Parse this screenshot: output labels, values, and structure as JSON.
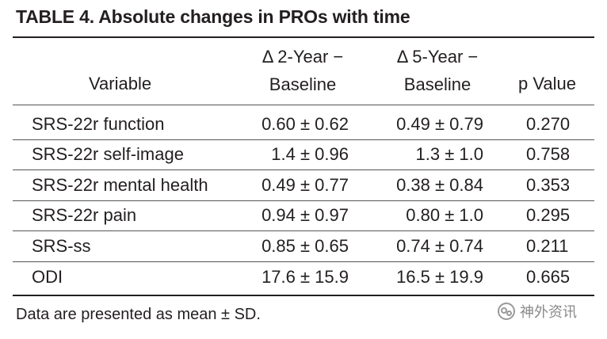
{
  "title": "TABLE 4. Absolute changes in PROs with time",
  "header": {
    "variable": "Variable",
    "year2_line1": "Δ 2-Year −",
    "year2_line2": "Baseline",
    "year5_line1": "Δ 5-Year −",
    "year5_line2": "Baseline",
    "p_value": "p Value"
  },
  "rows": [
    {
      "variable": "SRS-22r function",
      "year2": "0.60 ± 0.62",
      "year5": "0.49 ± 0.79",
      "p": "0.270"
    },
    {
      "variable": "SRS-22r self-image",
      "year2": "1.4 ± 0.96",
      "year5": "1.3 ± 1.0",
      "p": "0.758"
    },
    {
      "variable": "SRS-22r mental health",
      "year2": "0.49 ± 0.77",
      "year5": "0.38 ± 0.84",
      "p": "0.353"
    },
    {
      "variable": "SRS-22r pain",
      "year2": "0.94 ± 0.97",
      "year5": "0.80 ± 1.0",
      "p": "0.295"
    },
    {
      "variable": "SRS-ss",
      "year2": "0.85 ± 0.65",
      "year5": "0.74 ± 0.74",
      "p": "0.211"
    },
    {
      "variable": "ODI",
      "year2": "17.6 ± 15.9",
      "year5": "16.5 ± 19.9",
      "p": "0.665"
    }
  ],
  "footnote": "Data are presented as mean ± SD.",
  "watermark": {
    "icon": "wechat-icon",
    "text": "神外资讯"
  }
}
